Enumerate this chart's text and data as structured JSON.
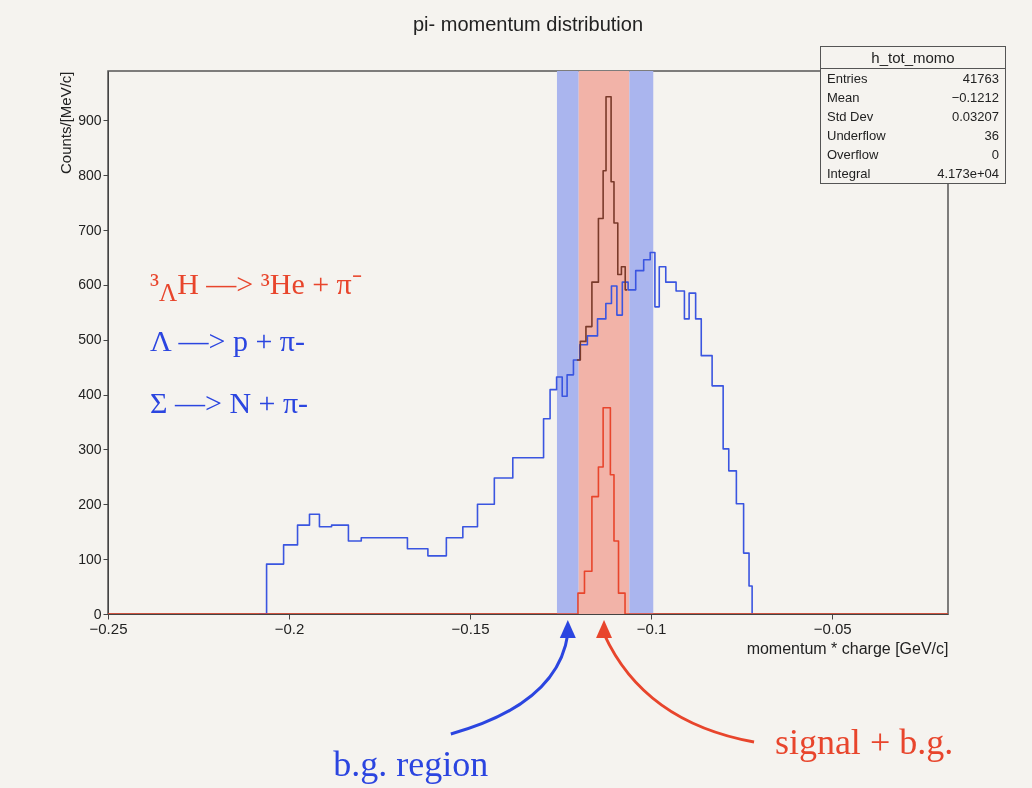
{
  "chart_data": {
    "type": "step",
    "title": "pi- momentum distribution",
    "xlabel": "momentum * charge [GeV/c]",
    "ylabel": "Counts/[MeV/c]",
    "xlim": [
      -0.25,
      -0.018
    ],
    "xticks": [
      -0.25,
      -0.2,
      -0.15,
      -0.1,
      -0.05
    ],
    "ylim": [
      0,
      990
    ],
    "yticks": [
      0,
      100,
      200,
      300,
      400,
      500,
      600,
      700,
      800,
      900
    ],
    "grid": false,
    "series": [
      {
        "color": "#3a55e0",
        "x": [
          -0.2083,
          -0.2041,
          -0.1989,
          -0.1964,
          -0.1923,
          -0.1909,
          -0.1856,
          -0.1816,
          -0.1785,
          -0.1704,
          -0.1642,
          -0.1591,
          -0.154,
          -0.15,
          -0.1459,
          -0.1407,
          -0.1357,
          -0.1307,
          -0.1287,
          -0.1271,
          -0.1251,
          -0.124,
          -0.1224,
          -0.1205,
          -0.1189,
          -0.1163,
          -0.1133,
          -0.1117,
          -0.1102,
          -0.1087,
          -0.1072,
          -0.1055,
          -0.103,
          -0.1011,
          -0.0994,
          -0.0985,
          -0.097,
          -0.0949,
          -0.0913,
          -0.0903,
          -0.0887,
          -0.0867,
          -0.0856,
          -0.0837,
          -0.0826,
          -0.0806,
          -0.0796,
          -0.0775,
          -0.0754,
          -0.0735,
          -0.0724,
          -0.0718
        ],
        "values": [
          0,
          91,
          126,
          162,
          182,
          159,
          162,
          133,
          139,
          139,
          119,
          106,
          139,
          159,
          200,
          248,
          285,
          285,
          356,
          409,
          432,
          397,
          436,
          463,
          491,
          507,
          538,
          566,
          598,
          545,
          605,
          591,
          626,
          646,
          659,
          560,
          633,
          605,
          589,
          538,
          585,
          538,
          471,
          471,
          416,
          416,
          301,
          261,
          201,
          111,
          51,
          0
        ]
      },
      {
        "color": "#7a3a2a",
        "x": [
          -0.1205,
          -0.1186,
          -0.1174,
          -0.1153,
          -0.1138,
          -0.1127,
          -0.1122,
          -0.1113,
          -0.1108,
          -0.1097,
          -0.1087,
          -0.1077,
          -0.1066
        ],
        "values": [
          463,
          497,
          524,
          605,
          721,
          808,
          943,
          943,
          788,
          713,
          619,
          633,
          591
        ]
      },
      {
        "color": "#e8452c",
        "x": [
          -0.25,
          -0.121,
          -0.1194,
          -0.1174,
          -0.1153,
          -0.1138,
          -0.1127,
          -0.1117,
          -0.1108,
          -0.1097,
          -0.1083,
          -0.1061,
          -0.018
        ],
        "values": [
          0,
          0,
          38,
          78,
          214,
          268,
          376,
          376,
          254,
          133,
          38,
          0,
          0
        ]
      }
    ],
    "bands": [
      {
        "axis": "x",
        "from": -0.126,
        "to": -0.12,
        "color": "#aab5ee"
      },
      {
        "axis": "x",
        "from": -0.12,
        "to": -0.106,
        "color": "#f2b3a8"
      },
      {
        "axis": "x",
        "from": -0.106,
        "to": -0.0994,
        "color": "#aab5ee"
      }
    ],
    "annotations": [
      "³$_{Λ}$H —> ³He + π⁻",
      "Λ —> p + π-",
      "Σ —> N + π-",
      "h_tot_momo",
      "Entries 41763",
      "Mean −0.1212",
      "Std Dev 0.03207",
      "Underflow 36",
      "Overflow 0",
      "Integral 4.173e+04",
      "b.g. region",
      "signal + b.g."
    ]
  }
}
